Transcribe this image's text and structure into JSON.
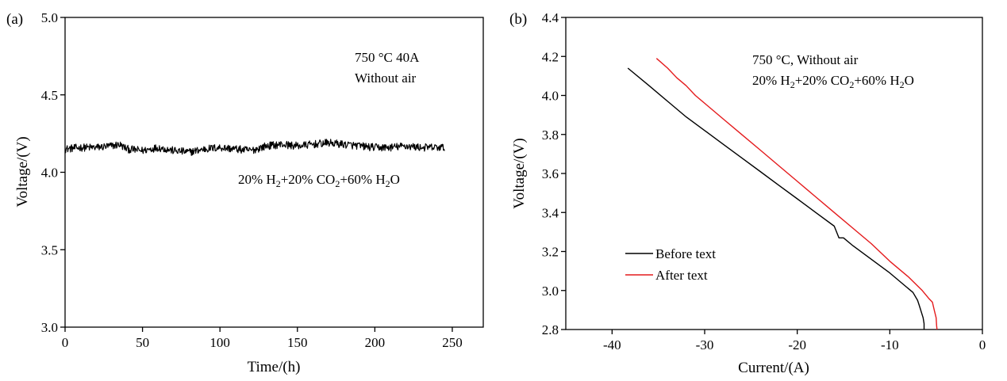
{
  "chart_data": [
    {
      "type": "line",
      "panel_label": "(a)",
      "xlabel": "Time/(h)",
      "ylabel": "Voltage/(V)",
      "xlim": [
        0,
        270
      ],
      "ylim": [
        3.0,
        5.0
      ],
      "xticks": [
        "0",
        "50",
        "100",
        "150",
        "200",
        "250"
      ],
      "yticks": [
        "3.0",
        "3.5",
        "4.0",
        "4.5",
        "5.0"
      ],
      "annotation_lines": [
        "750 °C  40A",
        "Without air"
      ],
      "gas_label": {
        "p1": "20% H",
        "s1": "2",
        "p2": "+20% CO",
        "s2": "2",
        "p3": "+60% H",
        "s3": "2",
        "p4": "O"
      },
      "series": [
        {
          "color": "#000000",
          "x": [
            0,
            10,
            20,
            30,
            35,
            40,
            50,
            60,
            70,
            80,
            90,
            100,
            110,
            120,
            130,
            140,
            150,
            160,
            170,
            180,
            190,
            200,
            210,
            220,
            230,
            240,
            245
          ],
          "y": [
            4.15,
            4.16,
            4.16,
            4.17,
            4.18,
            4.15,
            4.14,
            4.16,
            4.14,
            4.13,
            4.15,
            4.16,
            4.15,
            4.14,
            4.17,
            4.18,
            4.17,
            4.18,
            4.19,
            4.18,
            4.17,
            4.16,
            4.16,
            4.17,
            4.16,
            4.16,
            4.16
          ],
          "noise": 0.025
        }
      ]
    },
    {
      "type": "line",
      "panel_label": "(b)",
      "xlabel": "Current/(A)",
      "ylabel": "Voltage/(V)",
      "xlim": [
        -45,
        0
      ],
      "ylim": [
        2.8,
        4.4
      ],
      "xticks": [
        "-40",
        "-30",
        "-20",
        "-10",
        "0"
      ],
      "yticks": [
        "2.8",
        "3.0",
        "3.2",
        "3.4",
        "3.6",
        "3.8",
        "4.0",
        "4.2",
        "4.4"
      ],
      "annotation_line1": "750 °C, Without air",
      "gas_label": {
        "p1": "20% H",
        "s1": "2",
        "p2": "+20% CO",
        "s2": "2",
        "p3": "+60% H",
        "s3": "2",
        "p4": "O"
      },
      "legend_position": "bottom-left",
      "series": [
        {
          "name": "Before text",
          "color": "#000000",
          "x": [
            -38.3,
            -36,
            -34,
            -32,
            -30,
            -28,
            -26,
            -24,
            -22,
            -20,
            -18,
            -16,
            -15.5,
            -15,
            -14,
            -12,
            -10,
            -8.5,
            -7.5,
            -7,
            -6.8,
            -6.6,
            -6.4,
            -6.3,
            -6.3
          ],
          "y": [
            4.14,
            4.05,
            3.97,
            3.89,
            3.82,
            3.75,
            3.68,
            3.61,
            3.54,
            3.47,
            3.4,
            3.33,
            3.27,
            3.27,
            3.23,
            3.16,
            3.09,
            3.03,
            2.99,
            2.95,
            2.92,
            2.89,
            2.86,
            2.83,
            2.8
          ]
        },
        {
          "name": "After text",
          "color": "#e41a1c",
          "x": [
            -35.2,
            -34,
            -33,
            -32,
            -31,
            -30,
            -28,
            -26,
            -24,
            -22,
            -20,
            -18,
            -16,
            -14,
            -12,
            -10,
            -8,
            -6.5,
            -5.8,
            -5.4,
            -5.2,
            -5.0,
            -4.95,
            -4.9
          ],
          "y": [
            4.19,
            4.14,
            4.09,
            4.05,
            4.0,
            3.96,
            3.88,
            3.8,
            3.72,
            3.64,
            3.56,
            3.48,
            3.4,
            3.32,
            3.24,
            3.15,
            3.07,
            3.0,
            2.96,
            2.94,
            2.9,
            2.86,
            2.82,
            2.8
          ]
        }
      ]
    }
  ]
}
